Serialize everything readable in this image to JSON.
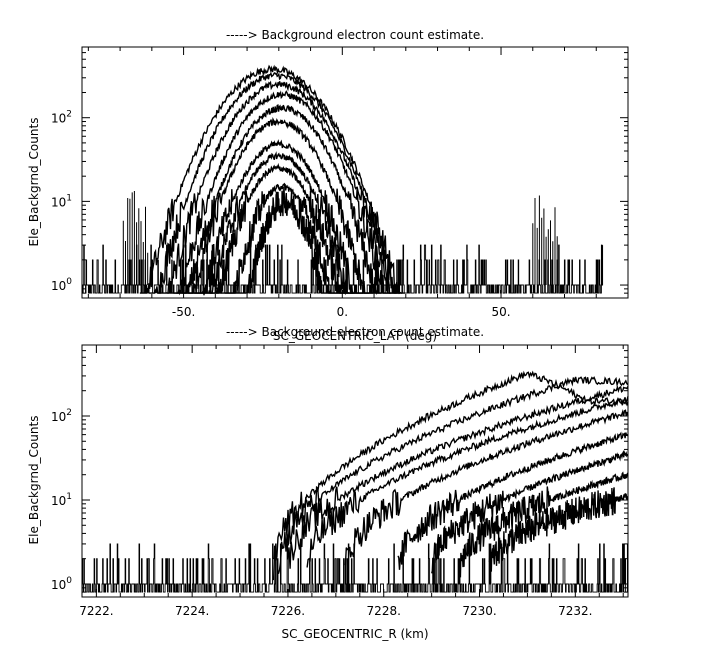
{
  "chart_data": [
    {
      "type": "line",
      "title": "-----> Background electron count estimate.",
      "xlabel": "SC_GEOCENTRIC_LAT (deg)",
      "ylabel": "Ele_Backgrnd_Counts",
      "y_scale": "log",
      "xlim": [
        -82,
        90
      ],
      "ylim": [
        0.7,
        700
      ],
      "x_ticks": [
        "-50.",
        "0.",
        "50."
      ],
      "x_tick_values": [
        -50,
        0,
        50
      ],
      "y_ticks": [
        {
          "base": "10",
          "exp": "2",
          "value": 100
        },
        {
          "base": "10",
          "exp": "1",
          "value": 10
        },
        {
          "base": "10",
          "exp": "0",
          "value": 1
        }
      ],
      "grid": false,
      "noise_x_range": [
        -82,
        82
      ],
      "series": [
        {
          "peak_x": -22,
          "peak_y": 380,
          "width": 22
        },
        {
          "peak_x": -21,
          "peak_y": 320,
          "width": 21
        },
        {
          "peak_x": -20,
          "peak_y": 250,
          "width": 20
        },
        {
          "peak_x": -19,
          "peak_y": 190,
          "width": 19
        },
        {
          "peak_x": -19,
          "peak_y": 130,
          "width": 18
        },
        {
          "peak_x": -20,
          "peak_y": 90,
          "width": 17
        },
        {
          "peak_x": -20,
          "peak_y": 48,
          "width": 16
        },
        {
          "peak_x": -20,
          "peak_y": 35,
          "width": 15
        },
        {
          "peak_x": -20,
          "peak_y": 25,
          "width": 14
        },
        {
          "peak_x": -19,
          "peak_y": 15,
          "width": 12
        },
        {
          "peak_x": -18,
          "peak_y": 10,
          "width": 10
        }
      ],
      "spikes": [
        {
          "x": -65,
          "y": 12
        },
        {
          "x": 64,
          "y": 10
        }
      ]
    },
    {
      "type": "line",
      "title": "-----> Background electron count estimate.",
      "xlabel": "SC_GEOCENTRIC_R (km)",
      "ylabel": "Ele_Backgrnd_Counts",
      "y_scale": "log",
      "xlim": [
        7221.7,
        7233.1
      ],
      "ylim": [
        0.7,
        700
      ],
      "x_ticks": [
        "7222.",
        "7224.",
        "7226.",
        "7228.",
        "7230.",
        "7232."
      ],
      "x_tick_values": [
        7222,
        7224,
        7226,
        7228,
        7230,
        7232
      ],
      "y_ticks": [
        {
          "base": "10",
          "exp": "2",
          "value": 100
        },
        {
          "base": "10",
          "exp": "1",
          "value": 10
        },
        {
          "base": "10",
          "exp": "0",
          "value": 1
        }
      ],
      "grid": false,
      "series": [
        {
          "start_x": 7225.7,
          "peak_x": 7231.0,
          "peak_y": 320,
          "end_y": 150
        },
        {
          "start_x": 7225.8,
          "peak_x": 7232.0,
          "peak_y": 270,
          "end_y": 250
        },
        {
          "start_x": 7226.0,
          "peak_x": 7233.1,
          "peak_y": 220,
          "end_y": 220
        },
        {
          "start_x": 7226.4,
          "peak_x": 7233.1,
          "peak_y": 160,
          "end_y": 160
        },
        {
          "start_x": 7227.2,
          "peak_x": 7233.1,
          "peak_y": 110,
          "end_y": 110
        },
        {
          "start_x": 7228.3,
          "peak_x": 7233.1,
          "peak_y": 60,
          "end_y": 60
        },
        {
          "start_x": 7229.0,
          "peak_x": 7233.1,
          "peak_y": 35,
          "end_y": 35
        },
        {
          "start_x": 7229.6,
          "peak_x": 7233.1,
          "peak_y": 20,
          "end_y": 20
        },
        {
          "start_x": 7230.2,
          "peak_x": 7233.1,
          "peak_y": 11,
          "end_y": 11
        }
      ]
    }
  ]
}
